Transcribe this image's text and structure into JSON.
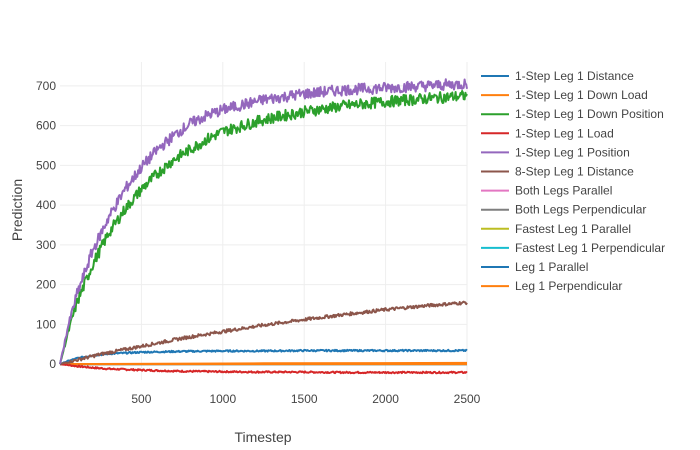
{
  "chart_data": {
    "type": "line",
    "xlabel": "Timestep",
    "ylabel": "Prediction",
    "xlim": [
      0,
      2500
    ],
    "ylim": [
      -40,
      760
    ],
    "xticks": [
      500,
      1000,
      1500,
      2000,
      2500
    ],
    "yticks": [
      0,
      100,
      200,
      300,
      400,
      500,
      600,
      700
    ],
    "grid": true,
    "legend_position": "right",
    "series": [
      {
        "name": "1-Step Leg 1 Distance",
        "color": "#1f77b4",
        "x": [
          0,
          50,
          100,
          200,
          300,
          500,
          750,
          1000,
          1250,
          1500,
          1750,
          2000,
          2250,
          2500
        ],
        "y": [
          0,
          8,
          14,
          22,
          26,
          30,
          32,
          33,
          33,
          34,
          34,
          34,
          34,
          34
        ]
      },
      {
        "name": "1-Step Leg 1 Down Load",
        "color": "#ff7f0e",
        "x": [
          0,
          100,
          300,
          500,
          1000,
          1500,
          2000,
          2500
        ],
        "y": [
          0,
          1,
          2,
          2,
          2,
          2,
          3,
          3
        ]
      },
      {
        "name": "1-Step Leg 1 Down Position",
        "color": "#2ca02c",
        "x": [
          0,
          50,
          100,
          200,
          300,
          400,
          500,
          600,
          700,
          800,
          900,
          1000,
          1250,
          1500,
          1750,
          2000,
          2250,
          2500
        ],
        "y": [
          0,
          80,
          150,
          250,
          330,
          390,
          440,
          480,
          515,
          540,
          565,
          585,
          615,
          635,
          650,
          660,
          668,
          675
        ]
      },
      {
        "name": "1-Step Leg 1 Load",
        "color": "#d62728",
        "x": [
          0,
          100,
          200,
          300,
          500,
          750,
          1000,
          1250,
          1500,
          1750,
          2000,
          2250,
          2500
        ],
        "y": [
          0,
          -5,
          -9,
          -12,
          -15,
          -18,
          -19,
          -20,
          -20,
          -21,
          -21,
          -21,
          -21
        ]
      },
      {
        "name": "1-Step Leg 1 Position",
        "color": "#9467bd",
        "x": [
          0,
          50,
          100,
          200,
          300,
          400,
          500,
          600,
          700,
          800,
          900,
          1000,
          1250,
          1500,
          1750,
          2000,
          2250,
          2500
        ],
        "y": [
          0,
          95,
          170,
          285,
          370,
          440,
          495,
          540,
          575,
          605,
          625,
          640,
          665,
          680,
          690,
          695,
          700,
          705
        ]
      },
      {
        "name": "8-Step Leg 1 Distance",
        "color": "#8c564b",
        "x": [
          0,
          250,
          500,
          750,
          1000,
          1250,
          1500,
          1750,
          2000,
          2250,
          2500
        ],
        "y": [
          0,
          25,
          45,
          65,
          82,
          98,
          112,
          125,
          137,
          147,
          155
        ]
      },
      {
        "name": "Both Legs Parallel",
        "color": "#e377c2",
        "x": [
          0,
          2500
        ],
        "y": [
          0,
          0
        ]
      },
      {
        "name": "Both Legs Perpendicular",
        "color": "#7f7f7f",
        "x": [
          0,
          2500
        ],
        "y": [
          0,
          0
        ]
      },
      {
        "name": "Fastest Leg 1 Parallel",
        "color": "#bcbd22",
        "x": [
          0,
          2500
        ],
        "y": [
          0,
          0
        ]
      },
      {
        "name": "Fastest Leg 1 Perpendicular",
        "color": "#17becf",
        "x": [
          0,
          2500
        ],
        "y": [
          0,
          0
        ]
      },
      {
        "name": "Leg 1 Parallel",
        "color": "#1f77b4",
        "x": [
          0,
          2500
        ],
        "y": [
          0,
          0
        ]
      },
      {
        "name": "Leg 1 Perpendicular",
        "color": "#ff7f0e",
        "x": [
          0,
          2500
        ],
        "y": [
          0,
          0
        ]
      }
    ]
  }
}
